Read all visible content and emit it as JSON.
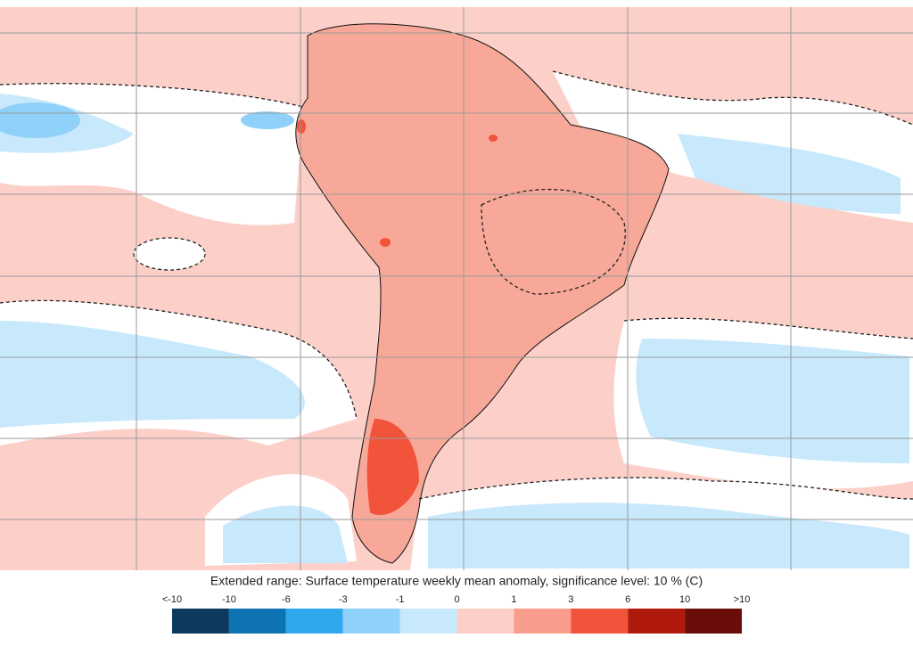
{
  "caption": "Extended range: Surface temperature weekly mean anomaly, significance level: 10 % (C)",
  "legend": {
    "labels": [
      "<-10",
      "-10",
      "-6",
      "-3",
      "-1",
      "0",
      "1",
      "3",
      "6",
      "10",
      ">10"
    ],
    "colors": [
      "#0b3a5c",
      "#0e73b2",
      "#2fa8ee",
      "#8fd1f9",
      "#c8e8fb",
      "#fcd0c9",
      "#f89d8b",
      "#f2533b",
      "#b01a0c",
      "#6a0d08"
    ]
  }
}
